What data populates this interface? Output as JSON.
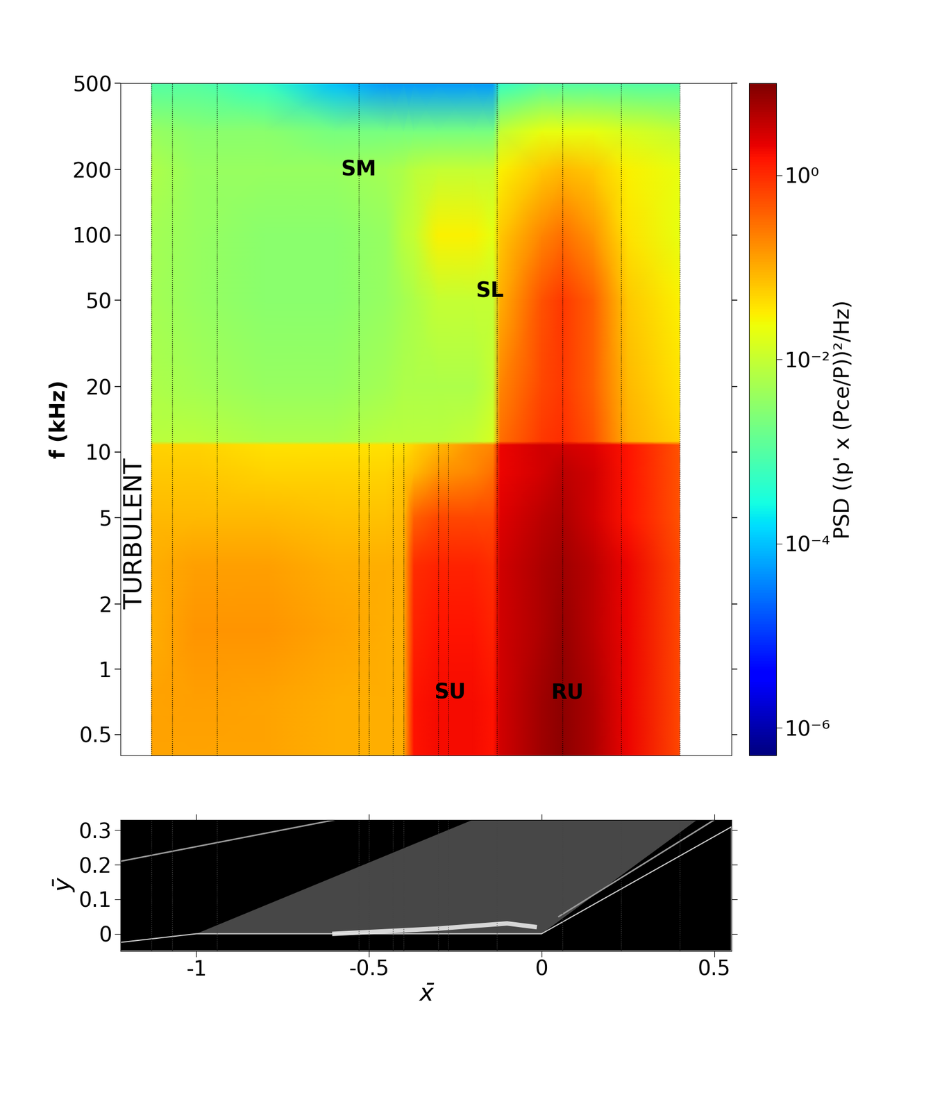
{
  "chart_data": [
    {
      "type": "heatmap",
      "ylabel": "f (kHz)",
      "log": "y",
      "tick_labels": "y",
      "xlim": [
        -1.22,
        0.55
      ],
      "ylim": [
        0.4,
        500
      ],
      "yticks": [
        0.5,
        1,
        2,
        5,
        10,
        20,
        50,
        100,
        200,
        500
      ],
      "x": [
        -1.13,
        -1.0,
        -0.8,
        -0.6,
        -0.45,
        -0.4,
        -0.37,
        -0.3,
        -0.2,
        -0.14,
        -0.12,
        0.0,
        0.06,
        0.15,
        0.25,
        0.4
      ],
      "y": [
        0.4,
        0.7,
        1.5,
        3,
        5,
        8,
        10.8,
        11.2,
        20,
        50,
        100,
        200,
        300,
        500
      ],
      "values": [
        [
          0.12,
          0.12,
          0.12,
          0.1,
          0.1,
          0.1,
          1.5,
          1.8,
          1.8,
          1.5,
          3,
          6,
          8,
          5,
          2,
          0.6
        ],
        [
          0.12,
          0.13,
          0.12,
          0.1,
          0.1,
          0.1,
          1.5,
          1.8,
          1.8,
          1.5,
          3,
          6,
          8,
          5,
          2,
          0.6
        ],
        [
          0.1,
          0.15,
          0.15,
          0.12,
          0.1,
          0.1,
          1.2,
          1.5,
          1.5,
          1.2,
          3,
          5,
          7,
          4,
          2,
          0.6
        ],
        [
          0.1,
          0.13,
          0.13,
          0.1,
          0.1,
          0.1,
          1.0,
          1.2,
          1.2,
          1.0,
          3,
          5,
          6,
          4,
          2,
          0.6
        ],
        [
          0.08,
          0.08,
          0.08,
          0.07,
          0.07,
          0.08,
          0.4,
          0.6,
          0.6,
          0.6,
          2.5,
          4,
          5,
          3,
          1.5,
          0.5
        ],
        [
          0.06,
          0.06,
          0.05,
          0.05,
          0.05,
          0.06,
          0.08,
          0.15,
          0.2,
          0.3,
          2,
          3,
          4,
          3,
          1.5,
          0.5
        ],
        [
          0.05,
          0.05,
          0.04,
          0.04,
          0.04,
          0.04,
          0.05,
          0.08,
          0.15,
          0.2,
          2,
          3,
          3,
          2.5,
          1.5,
          0.5
        ],
        [
          0.008,
          0.008,
          0.006,
          0.006,
          0.008,
          0.008,
          0.008,
          0.008,
          0.01,
          0.015,
          0.3,
          0.8,
          1,
          0.5,
          0.1,
          0.05
        ],
        [
          0.006,
          0.005,
          0.004,
          0.004,
          0.005,
          0.006,
          0.006,
          0.006,
          0.006,
          0.01,
          0.2,
          0.6,
          0.8,
          0.4,
          0.08,
          0.04
        ],
        [
          0.005,
          0.004,
          0.003,
          0.003,
          0.004,
          0.005,
          0.006,
          0.01,
          0.01,
          0.01,
          0.1,
          0.5,
          0.8,
          0.4,
          0.06,
          0.03
        ],
        [
          0.005,
          0.004,
          0.003,
          0.003,
          0.004,
          0.008,
          0.01,
          0.03,
          0.03,
          0.02,
          0.06,
          0.2,
          0.3,
          0.15,
          0.04,
          0.02
        ],
        [
          0.006,
          0.004,
          0.004,
          0.004,
          0.005,
          0.006,
          0.008,
          0.01,
          0.01,
          0.01,
          0.03,
          0.06,
          0.08,
          0.06,
          0.03,
          0.02
        ],
        [
          0.004,
          0.003,
          0.003,
          0.002,
          0.002,
          0.002,
          0.002,
          0.002,
          0.002,
          0.002,
          0.01,
          0.02,
          0.02,
          0.02,
          0.015,
          0.01
        ],
        [
          0.001,
          0.001,
          0.0005,
          0.0001,
          5e-05,
          5e-05,
          5e-05,
          5e-05,
          5e-05,
          5e-05,
          0.0005,
          0.001,
          0.001,
          0.001,
          0.001,
          0.001
        ]
      ],
      "colorbar": {
        "label": "PSD ((p' x (Pce/P))²/Hz)",
        "range": [
          5e-07,
          10
        ],
        "ticks": [
          {
            "value": 1e-06,
            "label": "10⁻⁶"
          },
          {
            "value": 0.0001,
            "label": "10⁻⁴"
          },
          {
            "value": 0.01,
            "label": "10⁻²"
          },
          {
            "value": 1,
            "label": "10⁰"
          }
        ]
      },
      "annotations": [
        {
          "text": "SM",
          "x": -0.53,
          "y": 200
        },
        {
          "text": "SL",
          "x": -0.15,
          "y": 55
        },
        {
          "text": "SU",
          "x": -0.265,
          "y": 0.78
        },
        {
          "text": "RU",
          "x": 0.075,
          "y": 0.78
        }
      ],
      "side_label": {
        "text": "TURBULENT",
        "x": -1.177,
        "y": 4.2
      },
      "sensors_full": [
        -1.13,
        -1.07,
        -0.94,
        -0.53,
        -0.13,
        0.06,
        0.23,
        0.4
      ],
      "sensors_low": [
        -0.5,
        -0.43,
        -0.4,
        -0.3,
        -0.27
      ],
      "sensors_low_top": 11
    },
    {
      "type": "image",
      "xlabel": "x̄",
      "ylabel": "ȳ",
      "xlim": [
        -1.22,
        0.55
      ],
      "ylim": [
        -0.05,
        0.33
      ],
      "xticks": [
        -1,
        -0.5,
        0,
        0.5
      ],
      "yticks": [
        0,
        0.1,
        0.2,
        0.3
      ],
      "body": [
        [
          -1.22,
          -0.025
        ],
        [
          -1.0,
          0.0
        ],
        [
          0.0,
          0.0
        ],
        [
          0.55,
          0.31
        ],
        [
          0.55,
          -0.05
        ],
        [
          -1.22,
          -0.05
        ]
      ],
      "shear_region": [
        [
          -1.0,
          0.0
        ],
        [
          -0.2,
          0.33
        ],
        [
          0.45,
          0.33
        ],
        [
          0.0,
          0.0
        ]
      ],
      "shear_layer": [
        [
          -0.6,
          0.0
        ],
        [
          -0.3,
          0.015
        ],
        [
          -0.1,
          0.03
        ],
        [
          -0.02,
          0.02
        ]
      ],
      "shocks": [
        [
          [
            -1.22,
            0.21
          ],
          [
            -0.6,
            0.33
          ]
        ],
        [
          [
            0.05,
            0.05
          ],
          [
            0.5,
            0.33
          ]
        ]
      ]
    }
  ]
}
